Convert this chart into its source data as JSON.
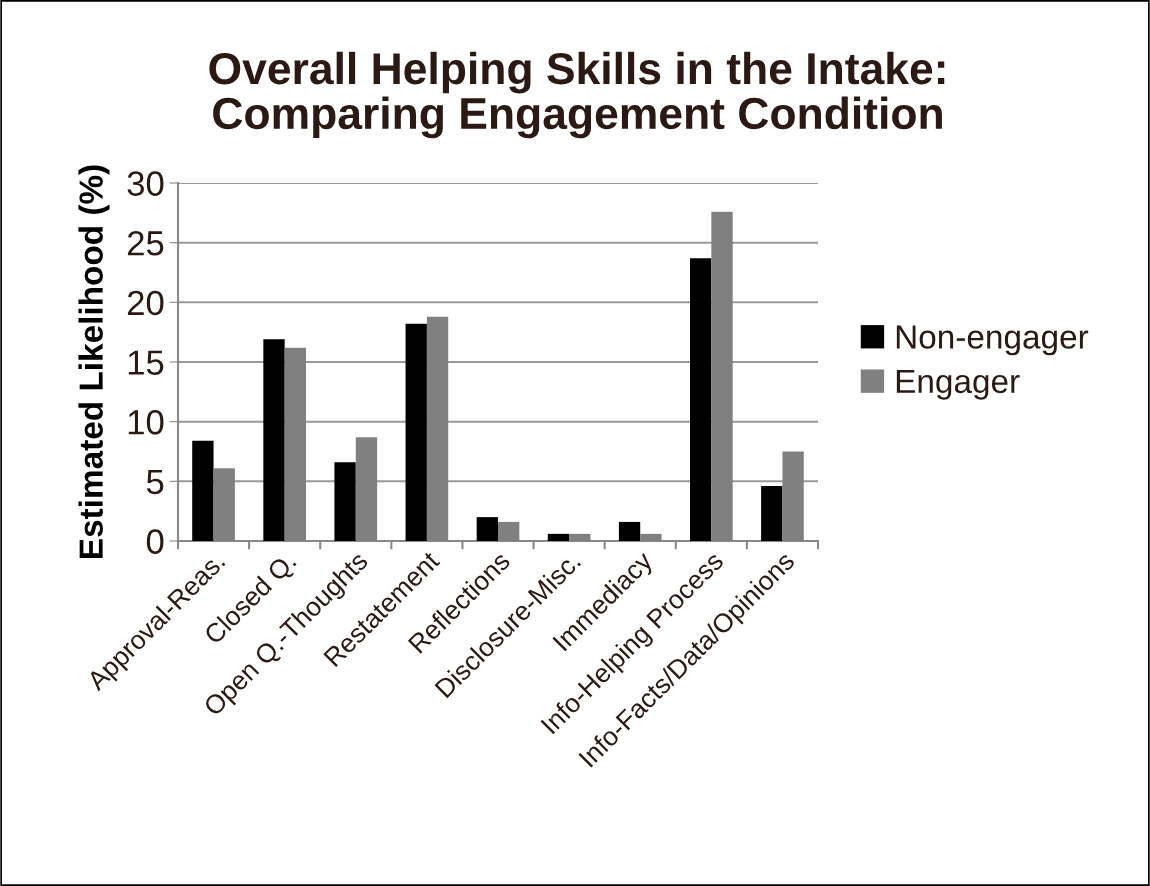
{
  "chart_data": {
    "type": "bar",
    "title": "Overall Helping Skills in the Intake:\nComparing Engagement Condition",
    "ylabel": "Estimated Likelihood (%)",
    "categories": [
      "Approval-Reas.",
      "Closed Q.",
      "Open Q.-Thoughts",
      "Restatement",
      "Reflections",
      "Disclosure-Misc.",
      "Immediacy",
      "Info-Helping Process",
      "Info-Facts/Data/Opinions"
    ],
    "series": [
      {
        "name": "Non-engager",
        "color": "#000000",
        "values": [
          8.4,
          16.9,
          6.6,
          18.2,
          2.0,
          0.6,
          1.6,
          23.7,
          4.6
        ]
      },
      {
        "name": "Engager",
        "color": "#808080",
        "values": [
          6.1,
          16.2,
          8.7,
          18.8,
          1.6,
          0.6,
          0.6,
          27.6,
          7.5
        ]
      }
    ],
    "ylim": [
      0,
      30
    ],
    "yticks": [
      0,
      5,
      10,
      15,
      20,
      25,
      30
    ],
    "grid": "y",
    "legend": "right"
  }
}
